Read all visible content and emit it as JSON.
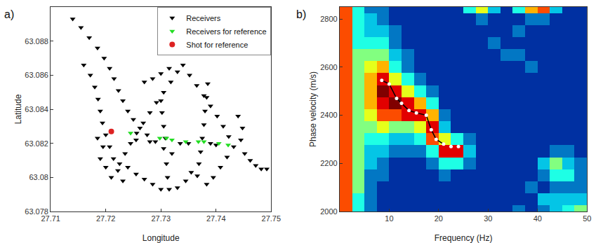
{
  "chart_data": [
    {
      "type": "scatter",
      "title": "a)",
      "x_label": "Longitude",
      "y_label": "Latitude",
      "xlim": [
        27.71,
        27.75
      ],
      "xticks": [
        27.71,
        27.72,
        27.73,
        27.74,
        27.75
      ],
      "ylim": [
        63.078,
        63.09
      ],
      "yticks": [
        63.078,
        63.08,
        63.082,
        63.084,
        63.086,
        63.088
      ],
      "grid": false,
      "legend": "upper right",
      "series": [
        {
          "name": "Receivers",
          "color": "#000000",
          "marker": "triangle-down",
          "x": [
            27.714,
            27.7155,
            27.717,
            27.7185,
            27.7197,
            27.7207,
            27.7215,
            27.7223,
            27.7231,
            27.724,
            27.725,
            27.7262,
            27.7275,
            27.729,
            27.7305,
            27.732,
            27.716,
            27.7172,
            27.718,
            27.7186,
            27.719,
            27.7194,
            27.72,
            27.7207,
            27.7214,
            27.7222,
            27.7231,
            27.734,
            27.7352,
            27.7365,
            27.7378,
            27.739,
            27.7402,
            27.7413,
            27.7423,
            27.7432,
            27.733,
            27.7318,
            27.7305,
            27.7292,
            27.728,
            27.7268,
            27.7256,
            27.7245,
            27.7235,
            27.7225,
            27.727,
            27.7285,
            27.73,
            27.7315,
            27.73,
            27.7302,
            27.7305,
            27.7308,
            27.731,
            27.7312,
            27.7315,
            27.7385,
            27.7383,
            27.738,
            27.7378,
            27.7375,
            27.7372,
            27.7369,
            27.7366,
            27.724,
            27.7255,
            27.727,
            27.7285,
            27.73,
            27.733,
            27.7345,
            27.7355,
            27.7255,
            27.728,
            27.7335,
            27.735,
            27.739,
            27.74,
            27.744,
            27.7448,
            27.7445,
            27.7452,
            27.7462,
            27.7472,
            27.7482,
            27.7492,
            27.742,
            27.7408,
            27.7395,
            27.7383,
            27.7185,
            27.7195,
            27.719,
            27.72,
            27.721
          ],
          "y": [
            63.0893,
            63.0888,
            63.0882,
            63.0876,
            63.087,
            63.0864,
            63.0858,
            63.0851,
            63.0845,
            63.0839,
            63.0834,
            63.0829,
            63.0825,
            63.0821,
            63.0817,
            63.0814,
            63.0866,
            63.086,
            63.0853,
            63.0846,
            63.0839,
            63.0832,
            63.0825,
            63.0818,
            63.0811,
            63.0804,
            63.0798,
            63.0866,
            63.086,
            63.0854,
            63.0848,
            63.0842,
            63.0836,
            63.083,
            63.0824,
            63.0818,
            63.0862,
            63.0856,
            63.085,
            63.0844,
            63.0838,
            63.0832,
            63.0826,
            63.082,
            63.0814,
            63.0808,
            63.0856,
            63.0858,
            63.0861,
            63.0864,
            63.0845,
            63.0838,
            63.083,
            63.0823,
            63.0808,
            63.08,
            63.0793,
            63.0855,
            63.0847,
            63.0839,
            63.0831,
            63.0823,
            63.0815,
            63.0808,
            63.0801,
            63.0806,
            63.0802,
            63.0799,
            63.0796,
            63.0793,
            63.0794,
            63.0798,
            63.0803,
            63.0822,
            63.0821,
            63.082,
            63.082,
            63.082,
            63.0819,
            63.0836,
            63.0829,
            63.0822,
            63.0814,
            63.081,
            63.0807,
            63.0805,
            63.0805,
            63.0812,
            63.0806,
            63.08,
            63.0796,
            63.0823,
            63.0818,
            63.0811,
            63.0806,
            63.08
          ]
        },
        {
          "name": "Receivers for reference",
          "color": "#22dd22",
          "marker": "triangle-down",
          "x": [
            27.7245,
            27.7298,
            27.731,
            27.732,
            27.7345,
            27.7368,
            27.7378,
            27.7405,
            27.7422
          ],
          "y": [
            63.0826,
            63.0823,
            63.0823,
            63.0822,
            63.0821,
            63.0821,
            63.0821,
            63.082,
            63.0819
          ]
        },
        {
          "name": "Shot for reference",
          "color": "#dd2222",
          "marker": "circle",
          "x": [
            27.721
          ],
          "y": [
            63.0827
          ]
        }
      ]
    },
    {
      "type": "heatmap",
      "title": "b)",
      "x_label": "Frequency (Hz)",
      "y_label": "Phase velocity (m/s)",
      "xlim": [
        0,
        50
      ],
      "xticks": [
        10,
        20,
        30,
        40,
        50
      ],
      "ylim": [
        2000,
        2850
      ],
      "yticks": [
        2000,
        2200,
        2400,
        2600,
        2800
      ],
      "grid": false,
      "heatmap": {
        "x": [
          1.25,
          3.75,
          6.25,
          8.75,
          11.25,
          13.75,
          16.25,
          18.75,
          21.25,
          23.75,
          26.25,
          28.75,
          31.25,
          33.75,
          36.25,
          38.75,
          41.25,
          43.75,
          46.25,
          48.75
        ],
        "y": [
          2000,
          2050,
          2100,
          2150,
          2200,
          2250,
          2300,
          2350,
          2400,
          2450,
          2500,
          2550,
          2600,
          2650,
          2700,
          2750,
          2800,
          2850
        ],
        "z": [
          [
            0.8,
            0.4,
            0.2,
            0.1,
            0.1,
            0.1,
            0.1,
            0.1,
            0.1,
            0.1,
            0.1,
            0.1,
            0.1,
            0.1,
            0.2,
            0.1,
            0.2,
            0.3,
            0.4,
            0.5
          ],
          [
            0.8,
            0.4,
            0.2,
            0.1,
            0.1,
            0.1,
            0.1,
            0.1,
            0.1,
            0.1,
            0.1,
            0.1,
            0.1,
            0.1,
            0.1,
            0.1,
            0.3,
            0.3,
            0.3,
            0.3
          ],
          [
            0.8,
            0.5,
            0.2,
            0.1,
            0.1,
            0.1,
            0.1,
            0.1,
            0.1,
            0.1,
            0.1,
            0.1,
            0.1,
            0.1,
            0.1,
            0.2,
            0.1,
            0.2,
            0.2,
            0.2
          ],
          [
            0.8,
            0.5,
            0.2,
            0.2,
            0.1,
            0.1,
            0.1,
            0.1,
            0.2,
            0.1,
            0.1,
            0.1,
            0.1,
            0.1,
            0.1,
            0.1,
            0.2,
            0.4,
            0.4,
            0.2
          ],
          [
            0.8,
            0.5,
            0.3,
            0.2,
            0.1,
            0.1,
            0.1,
            0.2,
            0.4,
            0.4,
            0.2,
            0.1,
            0.1,
            0.1,
            0.1,
            0.1,
            0.3,
            0.5,
            0.3,
            0.2
          ],
          [
            0.8,
            0.5,
            0.3,
            0.3,
            0.2,
            0.2,
            0.2,
            0.4,
            0.9,
            0.9,
            0.3,
            0.1,
            0.1,
            0.1,
            0.1,
            0.1,
            0.1,
            0.2,
            0.2,
            0.1
          ],
          [
            0.8,
            0.5,
            0.4,
            0.4,
            0.3,
            0.3,
            0.4,
            0.8,
            0.6,
            0.4,
            0.2,
            0.1,
            0.1,
            0.1,
            0.1,
            0.1,
            0.1,
            0.1,
            0.1,
            0.1
          ],
          [
            0.8,
            0.5,
            0.5,
            0.6,
            0.5,
            0.5,
            0.6,
            0.9,
            0.3,
            0.1,
            0.1,
            0.1,
            0.1,
            0.1,
            0.1,
            0.1,
            0.1,
            0.1,
            0.1,
            0.1
          ],
          [
            0.8,
            0.5,
            0.6,
            0.8,
            0.8,
            0.9,
            0.9,
            0.7,
            0.2,
            0.1,
            0.1,
            0.1,
            0.1,
            0.1,
            0.1,
            0.1,
            0.1,
            0.1,
            0.1,
            0.1
          ],
          [
            0.8,
            0.5,
            0.7,
            0.9,
            1.0,
            0.9,
            0.7,
            0.4,
            0.1,
            0.1,
            0.1,
            0.1,
            0.1,
            0.1,
            0.1,
            0.1,
            0.1,
            0.1,
            0.1,
            0.1
          ],
          [
            0.8,
            0.5,
            0.7,
            1.0,
            0.9,
            0.6,
            0.4,
            0.2,
            0.1,
            0.1,
            0.1,
            0.1,
            0.1,
            0.1,
            0.1,
            0.1,
            0.1,
            0.1,
            0.1,
            0.1
          ],
          [
            0.8,
            0.5,
            0.7,
            0.9,
            0.6,
            0.4,
            0.2,
            0.1,
            0.1,
            0.1,
            0.1,
            0.1,
            0.1,
            0.1,
            0.1,
            0.1,
            0.1,
            0.1,
            0.1,
            0.1
          ],
          [
            0.8,
            0.5,
            0.6,
            0.7,
            0.4,
            0.2,
            0.1,
            0.1,
            0.1,
            0.1,
            0.1,
            0.1,
            0.1,
            0.1,
            0.1,
            0.2,
            0.1,
            0.1,
            0.1,
            0.1
          ],
          [
            0.8,
            0.5,
            0.5,
            0.5,
            0.3,
            0.2,
            0.1,
            0.1,
            0.1,
            0.1,
            0.1,
            0.1,
            0.1,
            0.2,
            0.2,
            0.1,
            0.1,
            0.1,
            0.1,
            0.1
          ],
          [
            0.8,
            0.4,
            0.4,
            0.4,
            0.2,
            0.1,
            0.1,
            0.1,
            0.1,
            0.1,
            0.1,
            0.1,
            0.2,
            0.1,
            0.1,
            0.1,
            0.1,
            0.1,
            0.1,
            0.1
          ],
          [
            0.8,
            0.4,
            0.3,
            0.3,
            0.2,
            0.1,
            0.1,
            0.1,
            0.1,
            0.1,
            0.1,
            0.1,
            0.1,
            0.1,
            0.2,
            0.1,
            0.1,
            0.1,
            0.1,
            0.1
          ],
          [
            0.8,
            0.4,
            0.3,
            0.2,
            0.1,
            0.1,
            0.1,
            0.1,
            0.1,
            0.1,
            0.1,
            0.2,
            0.1,
            0.1,
            0.1,
            0.2,
            0.2,
            0.1,
            0.1,
            0.1
          ],
          [
            0.8,
            0.4,
            0.2,
            0.2,
            0.1,
            0.1,
            0.1,
            0.1,
            0.1,
            0.1,
            0.4,
            0.6,
            0.3,
            0.1,
            0.4,
            0.7,
            0.8,
            0.3,
            0.1,
            0.1
          ]
        ],
        "zlim": [
          0,
          1
        ]
      },
      "series": [
        {
          "type": "line",
          "color": "#000000",
          "x": [
            8.5,
            10,
            11.5,
            12.5,
            14,
            15.5,
            17.5,
            18.5,
            19.5,
            21
          ],
          "y": [
            2545,
            2530,
            2470,
            2450,
            2420,
            2410,
            2400,
            2340,
            2300,
            2280
          ]
        },
        {
          "type": "scatter",
          "color": "#ffffff",
          "marker": "circle",
          "x": [
            8.5,
            10,
            11.5,
            12.5,
            14,
            15.5,
            17.5,
            18.5,
            19.5,
            21,
            22.5,
            24
          ],
          "y": [
            2545,
            2530,
            2470,
            2450,
            2420,
            2410,
            2400,
            2340,
            2300,
            2280,
            2270,
            2270
          ]
        }
      ]
    }
  ]
}
